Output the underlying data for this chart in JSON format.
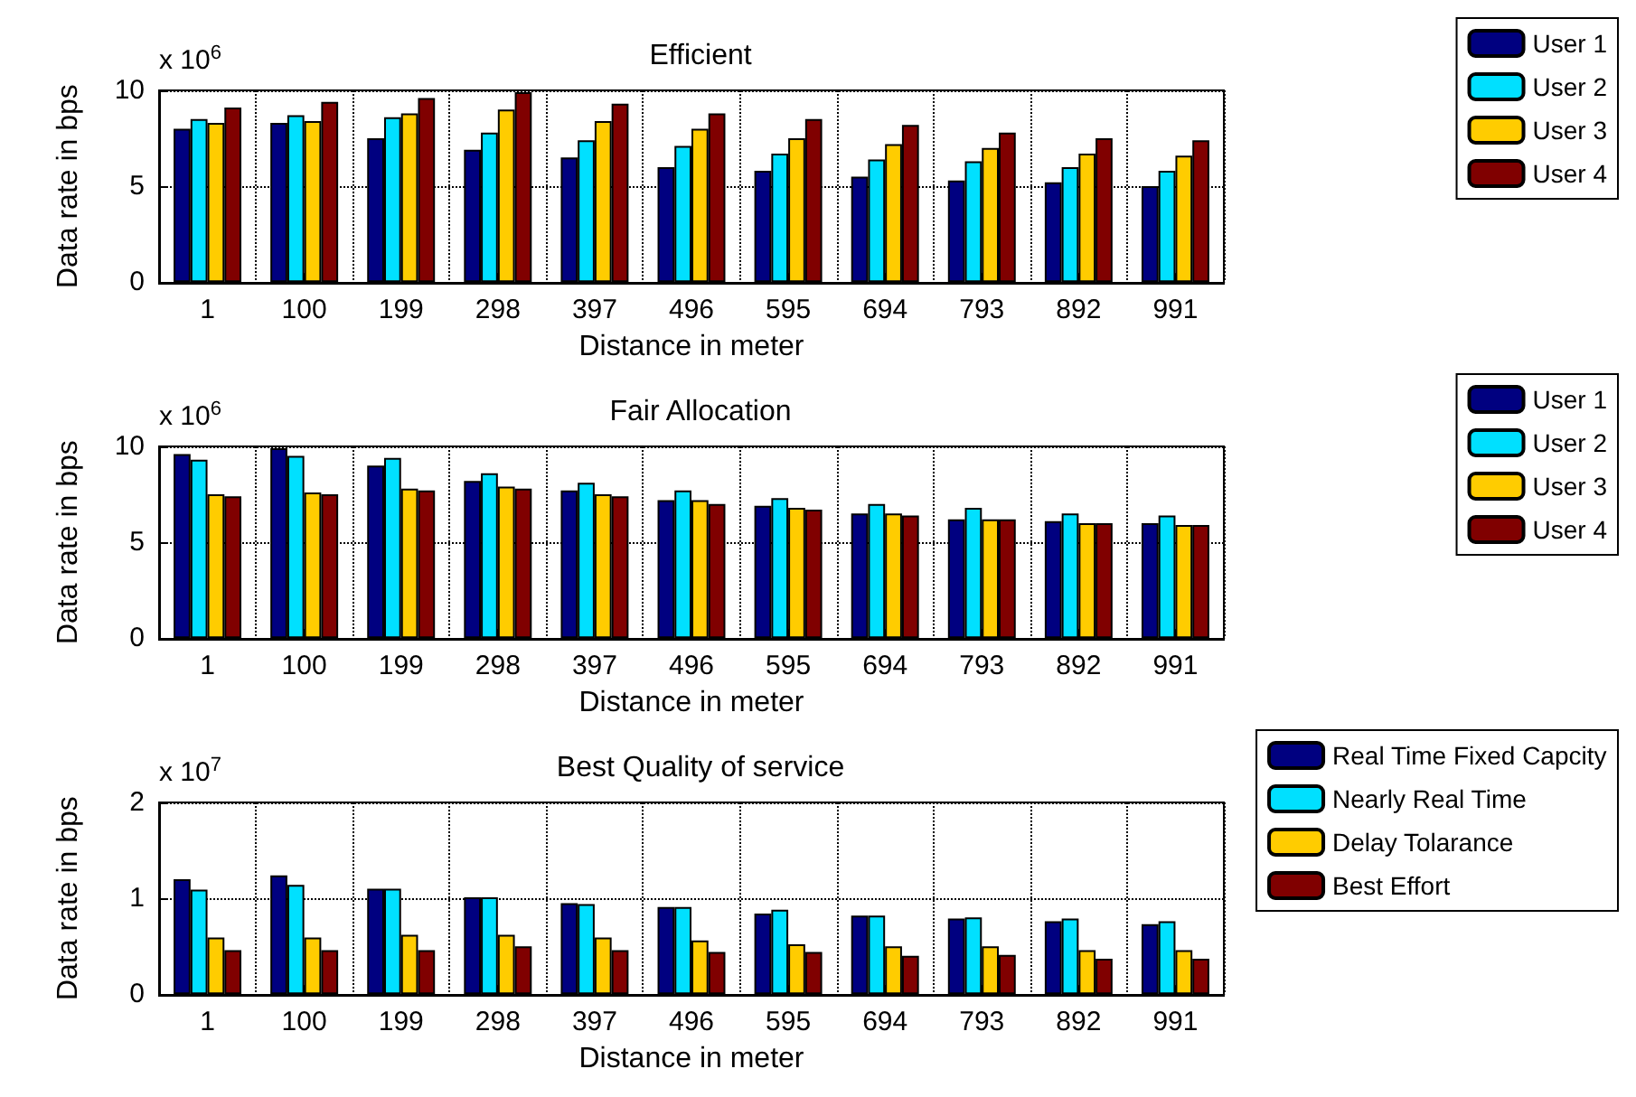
{
  "chart_data": [
    {
      "type": "bar",
      "title": "Efficient",
      "xlabel": "Distance in meter",
      "ylabel": "Data rate in bps",
      "annotations": [
        "x 10$^{6}$"
      ],
      "categories": [
        "1",
        "100",
        "199",
        "298",
        "397",
        "496",
        "595",
        "694",
        "793",
        "892",
        "991"
      ],
      "ylim": [
        0,
        10
      ],
      "yticks": [
        0,
        5,
        10
      ],
      "grid": true,
      "legend": "right",
      "series": [
        {
          "name": "User 1",
          "color": "#000080",
          "values": [
            8.0,
            8.3,
            7.5,
            6.9,
            6.5,
            6.0,
            5.8,
            5.5,
            5.3,
            5.2,
            5.0
          ]
        },
        {
          "name": "User 2",
          "color": "#00e0ff",
          "values": [
            8.5,
            8.7,
            8.6,
            7.8,
            7.4,
            7.1,
            6.7,
            6.4,
            6.3,
            6.0,
            5.8
          ]
        },
        {
          "name": "User 3",
          "color": "#ffcc00",
          "values": [
            8.3,
            8.4,
            8.8,
            9.0,
            8.4,
            8.0,
            7.5,
            7.2,
            7.0,
            6.7,
            6.6
          ]
        },
        {
          "name": "User 4",
          "color": "#800000",
          "values": [
            9.1,
            9.4,
            9.6,
            9.9,
            9.3,
            8.8,
            8.5,
            8.2,
            7.8,
            7.5,
            7.4
          ]
        }
      ]
    },
    {
      "type": "bar",
      "title": "Fair Allocation",
      "xlabel": "Distance in meter",
      "ylabel": "Data rate in bps",
      "annotations": [
        "x 10$^{6}$"
      ],
      "categories": [
        "1",
        "100",
        "199",
        "298",
        "397",
        "496",
        "595",
        "694",
        "793",
        "892",
        "991"
      ],
      "ylim": [
        0,
        10
      ],
      "yticks": [
        0,
        5,
        10
      ],
      "grid": true,
      "legend": "right",
      "series": [
        {
          "name": "User 1",
          "color": "#000080",
          "values": [
            9.6,
            9.9,
            9.0,
            8.2,
            7.7,
            7.2,
            6.9,
            6.5,
            6.2,
            6.1,
            6.0
          ]
        },
        {
          "name": "User 2",
          "color": "#00e0ff",
          "values": [
            9.3,
            9.5,
            9.4,
            8.6,
            8.1,
            7.7,
            7.3,
            7.0,
            6.8,
            6.5,
            6.4
          ]
        },
        {
          "name": "User 3",
          "color": "#ffcc00",
          "values": [
            7.5,
            7.6,
            7.8,
            7.9,
            7.5,
            7.2,
            6.8,
            6.5,
            6.2,
            6.0,
            5.9
          ]
        },
        {
          "name": "User 4",
          "color": "#800000",
          "values": [
            7.4,
            7.5,
            7.7,
            7.8,
            7.4,
            7.0,
            6.7,
            6.4,
            6.2,
            6.0,
            5.9
          ]
        }
      ]
    },
    {
      "type": "bar",
      "title": "Best Quality of service",
      "xlabel": "Distance in meter",
      "ylabel": "Data rate in bps",
      "annotations": [
        "x 10$^{7}$"
      ],
      "categories": [
        "1",
        "100",
        "199",
        "298",
        "397",
        "496",
        "595",
        "694",
        "793",
        "892",
        "991"
      ],
      "ylim": [
        0,
        2
      ],
      "yticks": [
        0,
        1,
        2
      ],
      "grid": true,
      "legend": "right",
      "series": [
        {
          "name": "Real Time Fixed Capcity",
          "color": "#000080",
          "values": [
            1.2,
            1.24,
            1.1,
            1.01,
            0.95,
            0.91,
            0.84,
            0.82,
            0.79,
            0.76,
            0.73
          ]
        },
        {
          "name": "Nearly Real Time",
          "color": "#00e0ff",
          "values": [
            1.09,
            1.14,
            1.1,
            1.01,
            0.94,
            0.91,
            0.88,
            0.82,
            0.8,
            0.79,
            0.76
          ]
        },
        {
          "name": "Delay Tolarance",
          "color": "#ffcc00",
          "values": [
            0.59,
            0.59,
            0.62,
            0.62,
            0.59,
            0.56,
            0.52,
            0.5,
            0.5,
            0.46,
            0.46
          ]
        },
        {
          "name": "Best Effort",
          "color": "#800000",
          "values": [
            0.46,
            0.46,
            0.46,
            0.5,
            0.46,
            0.44,
            0.44,
            0.4,
            0.41,
            0.37,
            0.37
          ]
        }
      ]
    }
  ]
}
